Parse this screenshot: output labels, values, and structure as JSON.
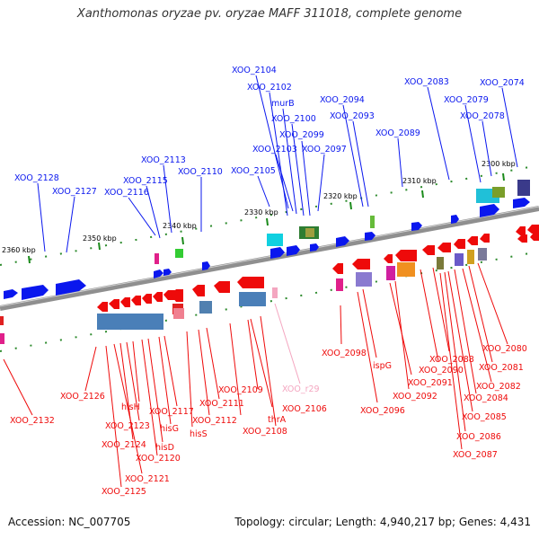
{
  "title": "Xanthomonas oryzae pv. oryzae MAFF 311018, complete genome",
  "footer": {
    "accession": "Accession: NC_007705",
    "topology": "Topology: circular; Length: 4,940,217 bp; Genes: 4,431"
  },
  "colors": {
    "forward_gene": "#0a17ee",
    "reverse_gene": "#ee0a0a",
    "rna": "#f4a6c0",
    "backbone": "#8c8c8c"
  },
  "kbp_labels": [
    "2360 kbp",
    "2350 kbp",
    "2340 kbp",
    "2330 kbp",
    "2320 kbp",
    "2310 kbp",
    "2300 kbp"
  ],
  "top_labels": [
    "XOO_2104",
    "XOO_2102",
    "murB",
    "XOO_2100",
    "XOO_2099",
    "XOO_2103",
    "XOO_2097",
    "XOO_2105",
    "XOO_2094",
    "XOO_2093",
    "XOO_2089",
    "XOO_2083",
    "XOO_2079",
    "XOO_2078",
    "XOO_2074",
    "XOO_2113",
    "XOO_2110",
    "XOO_2115",
    "XOO_2116",
    "XOO_2128",
    "XOO_2127"
  ],
  "bottom_labels": [
    "XOO_2098",
    "ispG",
    "XOO_2096",
    "XOO_2091",
    "XOO_2092",
    "XOO_2090",
    "XOO_2088",
    "XOO_2080",
    "XOO_2081",
    "XOO_2082",
    "XOO_2084",
    "XOO_2085",
    "XOO_2086",
    "XOO_2087",
    "XOO_r29",
    "XOO_2106",
    "XOO_2109",
    "thrA",
    "XOO_2108",
    "XOO_2111",
    "XOO_2112",
    "hisS",
    "XOO_2117",
    "hisG",
    "hisD",
    "XOO_2120",
    "hisH",
    "XOO_2123",
    "XOO_2124",
    "XOO_2121",
    "XOO_2125",
    "XOO_2126",
    "XOO_2132"
  ]
}
